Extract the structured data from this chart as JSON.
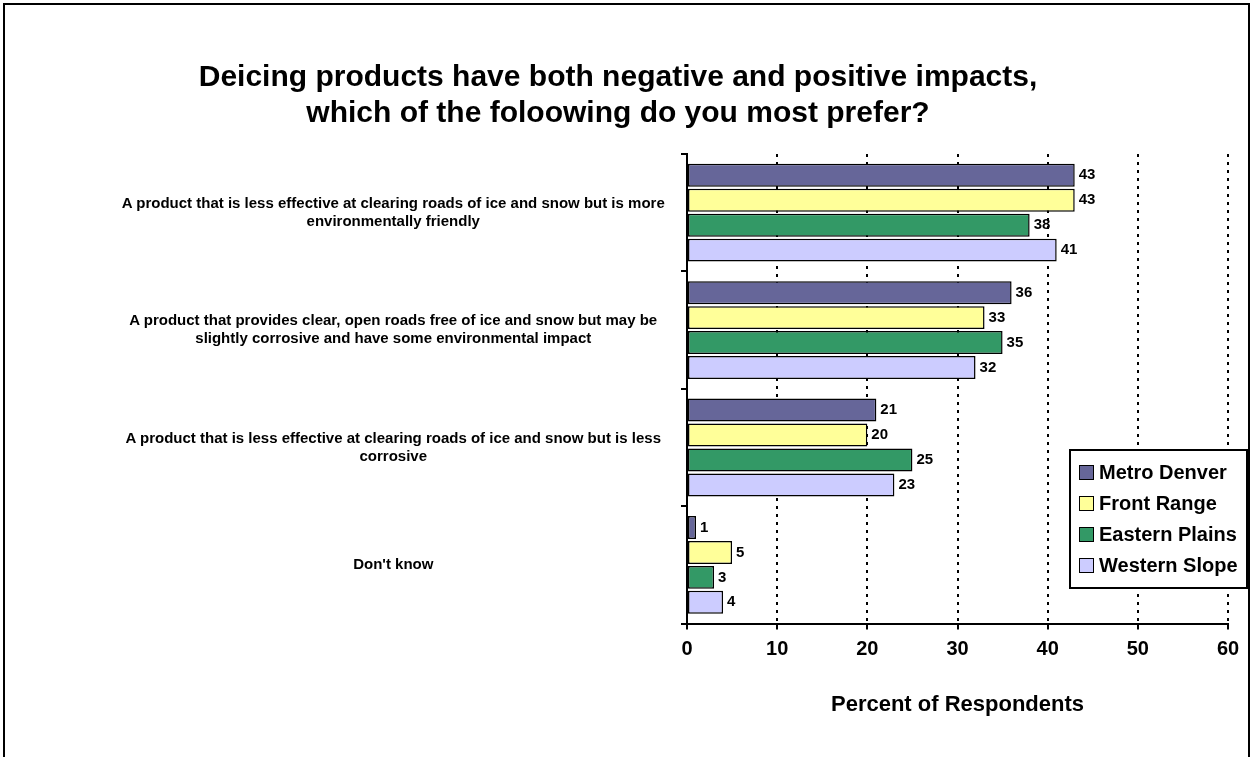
{
  "chart_data": {
    "type": "bar",
    "orientation": "horizontal",
    "title": "Deicing products have both negative and positive impacts, which of the foloowing do you most prefer?",
    "xlabel": "Percent of Respondents",
    "categories": [
      "A product that is less effective at clearing roads of ice and snow but is more environmentally friendly",
      "A product that provides clear, open roads free of ice and snow but may be slightly corrosive and have some environmental impact",
      "A product that is less effective at clearing roads of ice and snow but is less corrosive",
      "Don't know"
    ],
    "series": [
      {
        "name": "Metro Denver",
        "color": "#666699",
        "values": [
          43,
          36,
          21,
          1
        ]
      },
      {
        "name": "Front Range",
        "color": "#ffff99",
        "values": [
          43,
          33,
          20,
          5
        ]
      },
      {
        "name": "Eastern Plains",
        "color": "#339966",
        "values": [
          38,
          35,
          25,
          3
        ]
      },
      {
        "name": "Western Slope",
        "color": "#ccccff",
        "values": [
          41,
          32,
          23,
          4
        ]
      }
    ],
    "xlim": [
      0,
      60
    ],
    "xticks": [
      0,
      10,
      20,
      30,
      40,
      50,
      60
    ],
    "grid": "x",
    "legend": "bottom right",
    "data_labels": true
  }
}
